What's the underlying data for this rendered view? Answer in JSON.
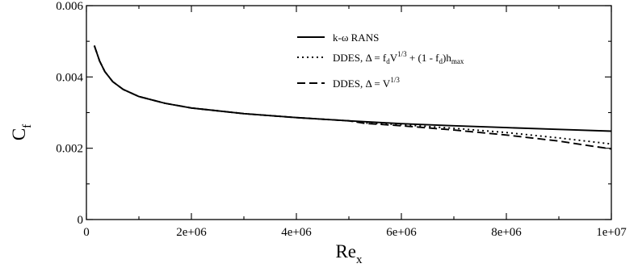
{
  "chart_data": {
    "type": "line",
    "title": "",
    "xlim": [
      0,
      10000000
    ],
    "ylim": [
      0,
      0.006
    ],
    "x_ticks": [
      0,
      2000000,
      4000000,
      6000000,
      8000000,
      10000000
    ],
    "x_tick_labels": [
      "0",
      "2e+06",
      "4e+06",
      "6e+06",
      "8e+06",
      "1e+07"
    ],
    "y_ticks": [
      0,
      0.002,
      0.004,
      0.006
    ],
    "y_tick_labels": [
      "0",
      "0.002",
      "0.004",
      "0.006"
    ],
    "xlabel": {
      "main": "Re",
      "sub": "x"
    },
    "ylabel": {
      "main": "C",
      "sub": "f"
    },
    "grid": false,
    "legend_position": "top-right",
    "series": [
      {
        "name": "k-ω RANS",
        "dash": "solid",
        "x": [
          150000,
          250000,
          350000,
          500000,
          700000,
          1000000,
          1500000,
          2000000,
          3000000,
          4000000,
          5000000,
          6000000,
          7000000,
          8000000,
          9000000,
          10000000
        ],
        "y": [
          0.00488,
          0.00445,
          0.00415,
          0.00387,
          0.00365,
          0.00345,
          0.00326,
          0.00313,
          0.00297,
          0.00286,
          0.00277,
          0.00269,
          0.00263,
          0.00258,
          0.00253,
          0.00248
        ]
      },
      {
        "name": "DDES, Δ = f_d V^1/3 + (1 - f_d)h_max",
        "dash": "dotted",
        "x": [
          150000,
          250000,
          350000,
          500000,
          700000,
          1000000,
          1500000,
          2000000,
          3000000,
          4000000,
          5000000,
          5300000,
          6000000,
          7000000,
          8000000,
          9000000,
          10000000
        ],
        "y": [
          0.00488,
          0.00445,
          0.00415,
          0.00387,
          0.00365,
          0.00345,
          0.00326,
          0.00313,
          0.00297,
          0.00286,
          0.00277,
          0.00271,
          0.00266,
          0.00256,
          0.00244,
          0.00229,
          0.00212
        ]
      },
      {
        "name": "DDES, Δ = V^1/3",
        "dash": "dashed",
        "x": [
          150000,
          250000,
          350000,
          500000,
          700000,
          1000000,
          1500000,
          2000000,
          3000000,
          4000000,
          5000000,
          5300000,
          6000000,
          7000000,
          8000000,
          9000000,
          10000000
        ],
        "y": [
          0.00488,
          0.00445,
          0.00415,
          0.00387,
          0.00365,
          0.00345,
          0.00326,
          0.00313,
          0.00297,
          0.00286,
          0.00277,
          0.0027,
          0.00263,
          0.00251,
          0.00237,
          0.0022,
          0.00198
        ]
      }
    ]
  }
}
